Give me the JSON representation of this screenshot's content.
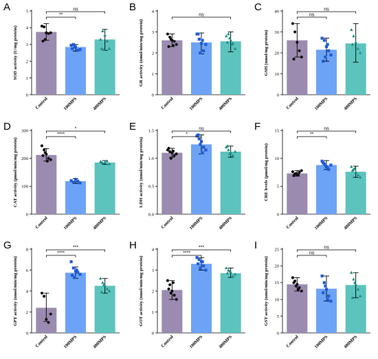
{
  "colors": {
    "Control": "#9b8bb0",
    "100MPS": "#6da3f6",
    "400MPS": "#5cc3bd",
    "marker_control": "#111111",
    "marker_100MPS": "#1f5ad6",
    "marker_400MPS": "#1f8f86"
  },
  "chart_data": [
    {
      "panel": "A",
      "type": "bar",
      "categories": [
        "Control",
        "100MPS",
        "400MPS"
      ],
      "values": [
        3.75,
        2.85,
        3.3
      ],
      "error": [
        [
          3.25,
          4.25
        ],
        [
          2.6,
          3.0
        ],
        [
          2.65,
          3.9
        ]
      ],
      "points": [
        [
          4.1,
          4.05,
          3.7,
          3.65,
          3.7,
          3.2,
          3.3
        ],
        [
          2.95,
          3.0,
          2.85,
          2.65,
          2.7,
          2.75,
          2.85
        ],
        [
          3.3,
          3.8,
          3.55,
          3.2,
          2.75,
          2.75,
          2.7
        ]
      ],
      "ylabel": "SOD activity (U/mg protein)",
      "ylim": [
        0,
        5
      ],
      "yticks": [
        0,
        1,
        2,
        3,
        4,
        5
      ],
      "significance": [
        {
          "a": 0,
          "b": 1,
          "label": "**"
        },
        {
          "a": 0,
          "b": 2,
          "label": "ns"
        }
      ]
    },
    {
      "panel": "B",
      "type": "bar",
      "categories": [
        "Control",
        "100MPS",
        "400MPS"
      ],
      "values": [
        2.6,
        2.5,
        2.55
      ],
      "error": [
        [
          2.3,
          2.9
        ],
        [
          1.95,
          2.95
        ],
        [
          2.05,
          3.0
        ]
      ],
      "points": [
        [
          2.9,
          2.75,
          2.6,
          2.55,
          2.4,
          2.3,
          2.65,
          2.35
        ],
        [
          2.9,
          2.65,
          2.45,
          2.1,
          2.4,
          2.9,
          2.0,
          2.6
        ],
        [
          2.8,
          2.9,
          2.6,
          2.45,
          2.2,
          2.5,
          2.7,
          2.4
        ]
      ],
      "ylabel": "GR activity (nmol/min/mg protein)",
      "ylim": [
        0,
        4
      ],
      "yticks": [
        0,
        1,
        2,
        3,
        4
      ],
      "significance": [
        {
          "a": 0,
          "b": 2,
          "label": "ns"
        }
      ]
    },
    {
      "panel": "C",
      "type": "bar",
      "categories": [
        "Control",
        "100MPS",
        "400MPS"
      ],
      "values": [
        26,
        21.5,
        24.5
      ],
      "error": [
        [
          18,
          34
        ],
        [
          16,
          27
        ],
        [
          15.5,
          34
        ]
      ],
      "points": [
        [
          34,
          30,
          25,
          21,
          18,
          17
        ],
        [
          27,
          26,
          23,
          21,
          19,
          16,
          18,
          24
        ],
        [
          31,
          28,
          25,
          22,
          20,
          24
        ]
      ],
      "ylabel": "GSH (nmol/mg protein)",
      "ylim": [
        0,
        40
      ],
      "yticks": [
        0,
        10,
        20,
        30,
        40
      ],
      "significance": [
        {
          "a": 0,
          "b": 1,
          "label": "ns"
        },
        {
          "a": 0,
          "b": 2,
          "label": "ns"
        }
      ]
    },
    {
      "panel": "D",
      "type": "bar",
      "categories": [
        "Control",
        "100MPS",
        "400MPS"
      ],
      "values": [
        212,
        118,
        185
      ],
      "error": [
        [
          190,
          235
        ],
        [
          110,
          127
        ],
        [
          178,
          192
        ]
      ],
      "points": [
        [
          245,
          230,
          215,
          200,
          195,
          210,
          220,
          190
        ],
        [
          120,
          115,
          125,
          118,
          112
        ],
        [
          188,
          183,
          186,
          190,
          180,
          185
        ]
      ],
      "ylabel": "CAT activity (μmol/min/mg protein)",
      "ylim": [
        0,
        300
      ],
      "yticks": [
        0,
        100,
        200,
        300
      ],
      "significance": [
        {
          "a": 0,
          "b": 1,
          "label": "****"
        },
        {
          "a": 0,
          "b": 2,
          "label": "*"
        }
      ]
    },
    {
      "panel": "E",
      "type": "bar",
      "categories": [
        "Control",
        "100MPS",
        "400MPS"
      ],
      "values": [
        1.1,
        1.25,
        1.12
      ],
      "error": [
        [
          1.02,
          1.18
        ],
        [
          1.08,
          1.42
        ],
        [
          1.02,
          1.22
        ]
      ],
      "points": [
        [
          1.15,
          1.12,
          1.1,
          1.05,
          1.08,
          1.18,
          1.0,
          1.13
        ],
        [
          1.4,
          1.35,
          1.3,
          1.2,
          1.15,
          1.42,
          1.25,
          1.1
        ],
        [
          1.2,
          1.15,
          1.1,
          1.05,
          1.12,
          1.22,
          1.08
        ]
      ],
      "ylabel": "LDH activity (nmol/min/mg protein)",
      "ylim": [
        0,
        1.5
      ],
      "yticks": [
        0,
        0.5,
        1.0,
        1.5
      ],
      "ytick_labels": [
        "0.0",
        "0.5",
        "1.0",
        "1.5"
      ],
      "significance": [
        {
          "a": 0,
          "b": 1,
          "label": "*"
        },
        {
          "a": 0,
          "b": 2,
          "label": "ns"
        }
      ]
    },
    {
      "panel": "F",
      "type": "bar",
      "categories": [
        "Control",
        "100MPS",
        "400MPS"
      ],
      "values": [
        7.3,
        8.8,
        7.6
      ],
      "error": [
        [
          6.8,
          7.8
        ],
        [
          8.0,
          9.6
        ],
        [
          6.6,
          8.6
        ]
      ],
      "points": [
        [
          7.6,
          7.2,
          7.0,
          7.5,
          7.8,
          6.9,
          7.3,
          7.1
        ],
        [
          9.5,
          9.0,
          8.5,
          8.0,
          8.8,
          9.2,
          8.7,
          8.3
        ],
        [
          8.5,
          8.0,
          7.5,
          7.0,
          6.6,
          7.8,
          8.2
        ]
      ],
      "ylabel": "CRE levels (μmol/mg protein)",
      "ylim": [
        0,
        15
      ],
      "yticks": [
        0,
        5,
        10,
        15
      ],
      "significance": [
        {
          "a": 0,
          "b": 1,
          "label": "**"
        },
        {
          "a": 0,
          "b": 2,
          "label": "ns"
        }
      ]
    },
    {
      "panel": "G",
      "type": "bar",
      "categories": [
        "Control",
        "100MPS",
        "400MPS"
      ],
      "values": [
        2.4,
        5.75,
        4.5
      ],
      "error": [
        [
          1.1,
          3.8
        ],
        [
          5.2,
          6.3
        ],
        [
          3.8,
          5.2
        ]
      ],
      "points": [
        [
          3.8,
          3.5,
          1.3,
          1.0,
          1.8
        ],
        [
          6.8,
          6.2,
          5.9,
          5.8,
          5.6,
          5.5,
          5.3,
          6.0
        ],
        [
          5.2,
          4.8,
          4.5,
          4.2,
          4.0,
          3.9,
          4.6
        ]
      ],
      "ylabel": "GPT activity (nmol/min/mg protein)",
      "ylim": [
        0,
        8
      ],
      "yticks": [
        0,
        2,
        4,
        6,
        8
      ],
      "significance": [
        {
          "a": 0,
          "b": 1,
          "label": "****"
        },
        {
          "a": 0,
          "b": 2,
          "label": "***"
        }
      ]
    },
    {
      "panel": "H",
      "type": "bar",
      "categories": [
        "Control",
        "100MPS",
        "400MPS"
      ],
      "values": [
        2.05,
        3.3,
        2.85
      ],
      "error": [
        [
          1.6,
          2.5
        ],
        [
          3.0,
          3.6
        ],
        [
          2.65,
          3.1
        ]
      ],
      "points": [
        [
          2.5,
          2.3,
          2.0,
          1.8,
          1.6,
          2.1,
          1.9,
          2.4
        ],
        [
          3.6,
          3.5,
          3.4,
          3.2,
          3.0,
          3.3,
          3.1,
          3.4
        ],
        [
          3.1,
          3.0,
          2.9,
          2.7,
          2.8,
          2.85,
          2.95
        ]
      ],
      "ylabel": "GOT activity (nmol/min/mg protein)",
      "ylim": [
        0,
        4
      ],
      "yticks": [
        0,
        1,
        2,
        3,
        4
      ],
      "significance": [
        {
          "a": 0,
          "b": 1,
          "label": "****"
        },
        {
          "a": 0,
          "b": 2,
          "label": "***"
        }
      ]
    },
    {
      "panel": "I",
      "type": "bar",
      "categories": [
        "Control",
        "100MPS",
        "400MPS"
      ],
      "values": [
        14.5,
        13.2,
        14.3
      ],
      "error": [
        [
          12.5,
          16.5
        ],
        [
          9.5,
          17.0
        ],
        [
          10.5,
          18.0
        ]
      ],
      "points": [
        [
          16.5,
          15.5,
          14.5,
          13.5,
          12.5,
          15.0,
          14.0,
          13.0
        ],
        [
          17.0,
          15.0,
          13.0,
          11.0,
          9.5,
          12.0,
          14.0,
          10.0
        ],
        [
          18.0,
          16.0,
          14.5,
          13.0,
          11.0,
          10.5,
          15.0
        ]
      ],
      "ylabel": "GST activity (nmol/min/mg protein)",
      "ylim": [
        0,
        25
      ],
      "yticks": [
        0,
        5,
        10,
        15,
        20,
        25
      ],
      "significance": [
        {
          "a": 0,
          "b": 1,
          "label": "ns"
        },
        {
          "a": 0,
          "b": 2,
          "label": "ns"
        }
      ]
    }
  ]
}
